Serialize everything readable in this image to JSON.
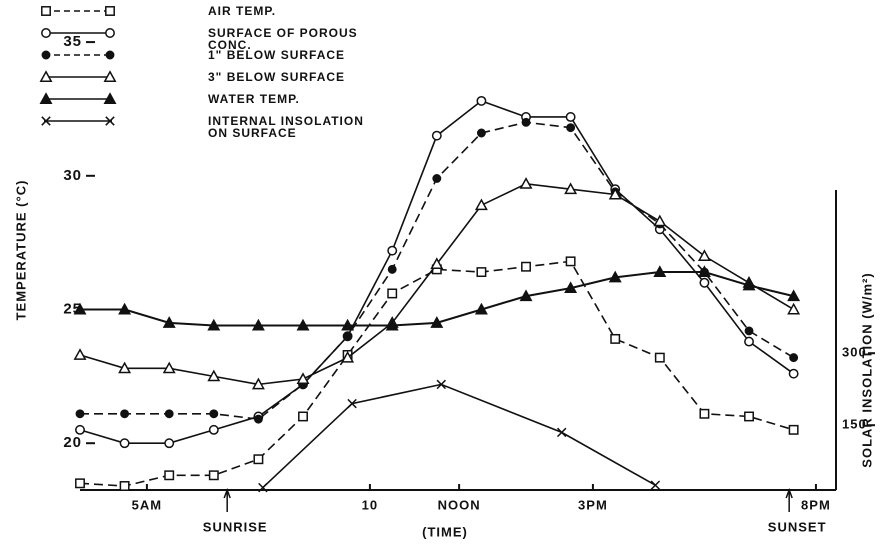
{
  "chart_data": {
    "type": "line",
    "x": [
      3.5,
      4.5,
      5.5,
      6.5,
      7.5,
      8.5,
      9.5,
      10.5,
      11.5,
      12.5,
      13.5,
      14.5,
      15.5,
      16.5,
      17.5,
      18.5,
      19.5
    ],
    "xlim": [
      3.5,
      20.45
    ],
    "xticks": [
      {
        "value": 5,
        "label": "5AM"
      },
      10,
      {
        "value": 12,
        "label": "NOON"
      },
      {
        "value": 15,
        "label": "3PM"
      },
      {
        "value": 20,
        "label": "8PM"
      }
    ],
    "xlabel": "(TIME)",
    "ylabel": "TEMPERATURE (°C)",
    "ylim": [
      18.25,
      36.2
    ],
    "yticks": [
      20,
      25,
      30,
      35
    ],
    "y2label": "SOLAR INSOLATION (W/m²)",
    "y2lim": [
      15,
      1015
    ],
    "y2ticks": [
      150,
      300
    ],
    "annotations": [
      {
        "text": "SUNRISE",
        "x": 6.8
      },
      {
        "text": "SUNSET",
        "x": 19.4
      }
    ],
    "series": [
      {
        "name": "AIR TEMP.",
        "color": "#111111",
        "marker": "square-open",
        "dash": true,
        "values": [
          18.5,
          18.4,
          18.8,
          18.8,
          19.4,
          21.0,
          23.3,
          25.6,
          26.5,
          26.4,
          26.6,
          26.8,
          23.9,
          23.2,
          21.1,
          21.0,
          20.5
        ]
      },
      {
        "name": "SURFACE OF POROUS CONC.",
        "color": "#111111",
        "marker": "circle-open",
        "dash": false,
        "values": [
          20.5,
          20.0,
          20.0,
          20.5,
          21.0,
          22.2,
          24.0,
          27.2,
          31.5,
          32.8,
          32.2,
          32.2,
          29.5,
          28.0,
          26.0,
          23.8,
          22.6
        ]
      },
      {
        "name": "1\" BELOW SURFACE",
        "color": "#111111",
        "marker": "circle-filled",
        "dash": true,
        "values": [
          21.1,
          21.1,
          21.1,
          21.1,
          20.9,
          22.2,
          24.0,
          26.5,
          29.9,
          31.6,
          32.0,
          31.8,
          29.4,
          28.2,
          26.4,
          24.2,
          23.2
        ]
      },
      {
        "name": "3\" BELOW SURFACE",
        "color": "#111111",
        "marker": "triangle-open",
        "dash": false,
        "values": [
          23.3,
          22.8,
          22.8,
          22.5,
          22.2,
          22.4,
          23.2,
          24.5,
          26.7,
          28.9,
          29.7,
          29.5,
          29.3,
          28.3,
          27.0,
          26.0,
          25.0
        ]
      },
      {
        "name": "WATER TEMP.",
        "color": "#111111",
        "marker": "triangle-filled",
        "dash": false,
        "values": [
          25.0,
          25.0,
          24.5,
          24.4,
          24.4,
          24.4,
          24.4,
          24.4,
          24.5,
          25.0,
          25.5,
          25.8,
          26.2,
          26.4,
          26.4,
          25.9,
          25.5
        ]
      },
      {
        "name": "INTERNAL INSOLATION ON SURFACE",
        "color": "#111111",
        "marker": "x",
        "dash": false,
        "axis": "y2",
        "x": [
          7.6,
          9.6,
          11.6,
          14.3,
          16.4
        ],
        "values": [
          20,
          195,
          235,
          135,
          25
        ]
      }
    ]
  }
}
